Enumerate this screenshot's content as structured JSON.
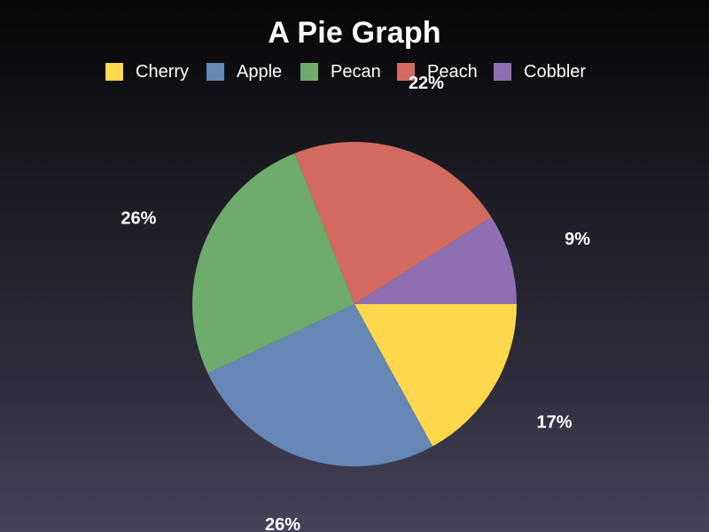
{
  "chart_data": {
    "type": "pie",
    "title": "A Pie Graph",
    "legend_position": "top",
    "slices": [
      {
        "name": "Cherry",
        "value": 17,
        "label": "17%",
        "color": "#ffd84d"
      },
      {
        "name": "Apple",
        "value": 26,
        "label": "26%",
        "color": "#6687b6"
      },
      {
        "name": "Pecan",
        "value": 26,
        "label": "26%",
        "color": "#6eab6c"
      },
      {
        "name": "Peach",
        "value": 22,
        "label": "22%",
        "color": "#d36a60"
      },
      {
        "name": "Cobbler",
        "value": 9,
        "label": "9%",
        "color": "#8e70b2"
      }
    ]
  }
}
